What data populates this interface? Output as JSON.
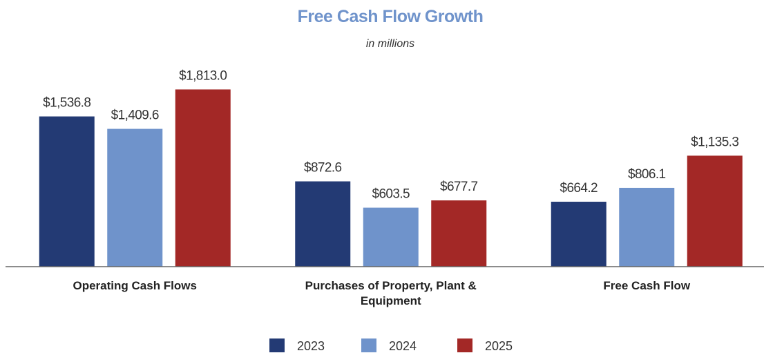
{
  "chart_data": {
    "type": "bar",
    "title": "Free Cash Flow Growth",
    "subtitle": "in millions",
    "categories": [
      "Operating Cash Flows",
      "Purchases of Property, Plant & Equipment",
      "Free Cash Flow"
    ],
    "series": [
      {
        "name": "2023",
        "color": "#233a74",
        "values": [
          1536.8,
          872.6,
          664.2
        ],
        "value_labels": [
          "$1,536.8",
          "$872.6",
          "$664.2"
        ]
      },
      {
        "name": "2024",
        "color": "#6f93cb",
        "values": [
          1409.6,
          603.5,
          806.1
        ],
        "value_labels": [
          "$1,409.6",
          "$603.5",
          "$806.1"
        ]
      },
      {
        "name": "2025",
        "color": "#a32826",
        "values": [
          1813.0,
          677.7,
          1135.3
        ],
        "value_labels": [
          "$1,813.0",
          "$677.7",
          "$1,135.3"
        ]
      }
    ],
    "ylim": [
      0,
      2000
    ],
    "legend": "bottom"
  }
}
